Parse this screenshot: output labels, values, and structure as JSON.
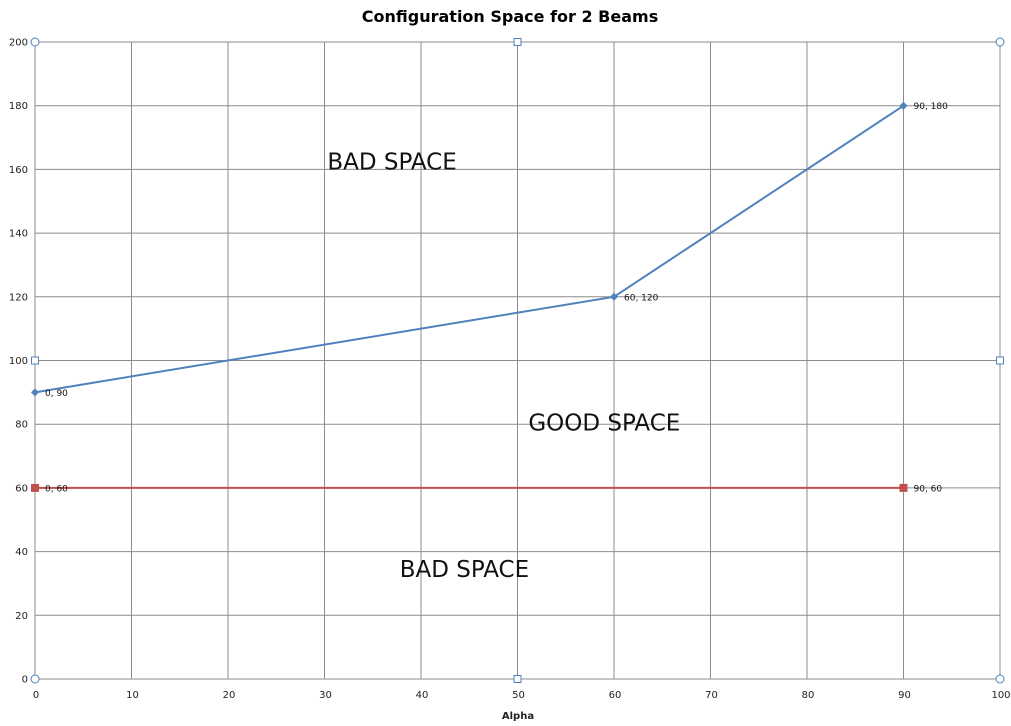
{
  "chart_data": {
    "type": "line",
    "title": "Configuration Space for 2 Beams",
    "xlabel": "Alpha",
    "ylabel": "",
    "xlim": [
      0,
      100
    ],
    "ylim": [
      0,
      200
    ],
    "x_ticks": [
      0,
      10,
      20,
      30,
      40,
      50,
      60,
      70,
      80,
      90,
      100
    ],
    "y_ticks": [
      0,
      20,
      40,
      60,
      80,
      100,
      120,
      140,
      160,
      180,
      200
    ],
    "grid": true,
    "legend": "none",
    "series": [
      {
        "color": "#4f81bd",
        "marker": "diamond",
        "points": [
          {
            "x": 0,
            "y": 90,
            "label": "0, 90"
          },
          {
            "x": 60,
            "y": 120,
            "label": "60, 120"
          },
          {
            "x": 90,
            "y": 180,
            "label": "90, 180"
          }
        ]
      },
      {
        "color": "#c0504d",
        "marker": "square",
        "points": [
          {
            "x": 0,
            "y": 60,
            "label": "0, 60"
          },
          {
            "x": 90,
            "y": 60,
            "label": "90, 60"
          }
        ]
      }
    ],
    "annotations": [
      {
        "text": "BAD SPACE",
        "x": 37,
        "y": 160
      },
      {
        "text": "GOOD SPACE",
        "x": 59,
        "y": 78
      },
      {
        "text": "BAD SPACE",
        "x": 44.5,
        "y": 32
      }
    ]
  },
  "colors": {
    "gridline": "#8c8c8c",
    "selection_handle": "#4f81bd"
  }
}
